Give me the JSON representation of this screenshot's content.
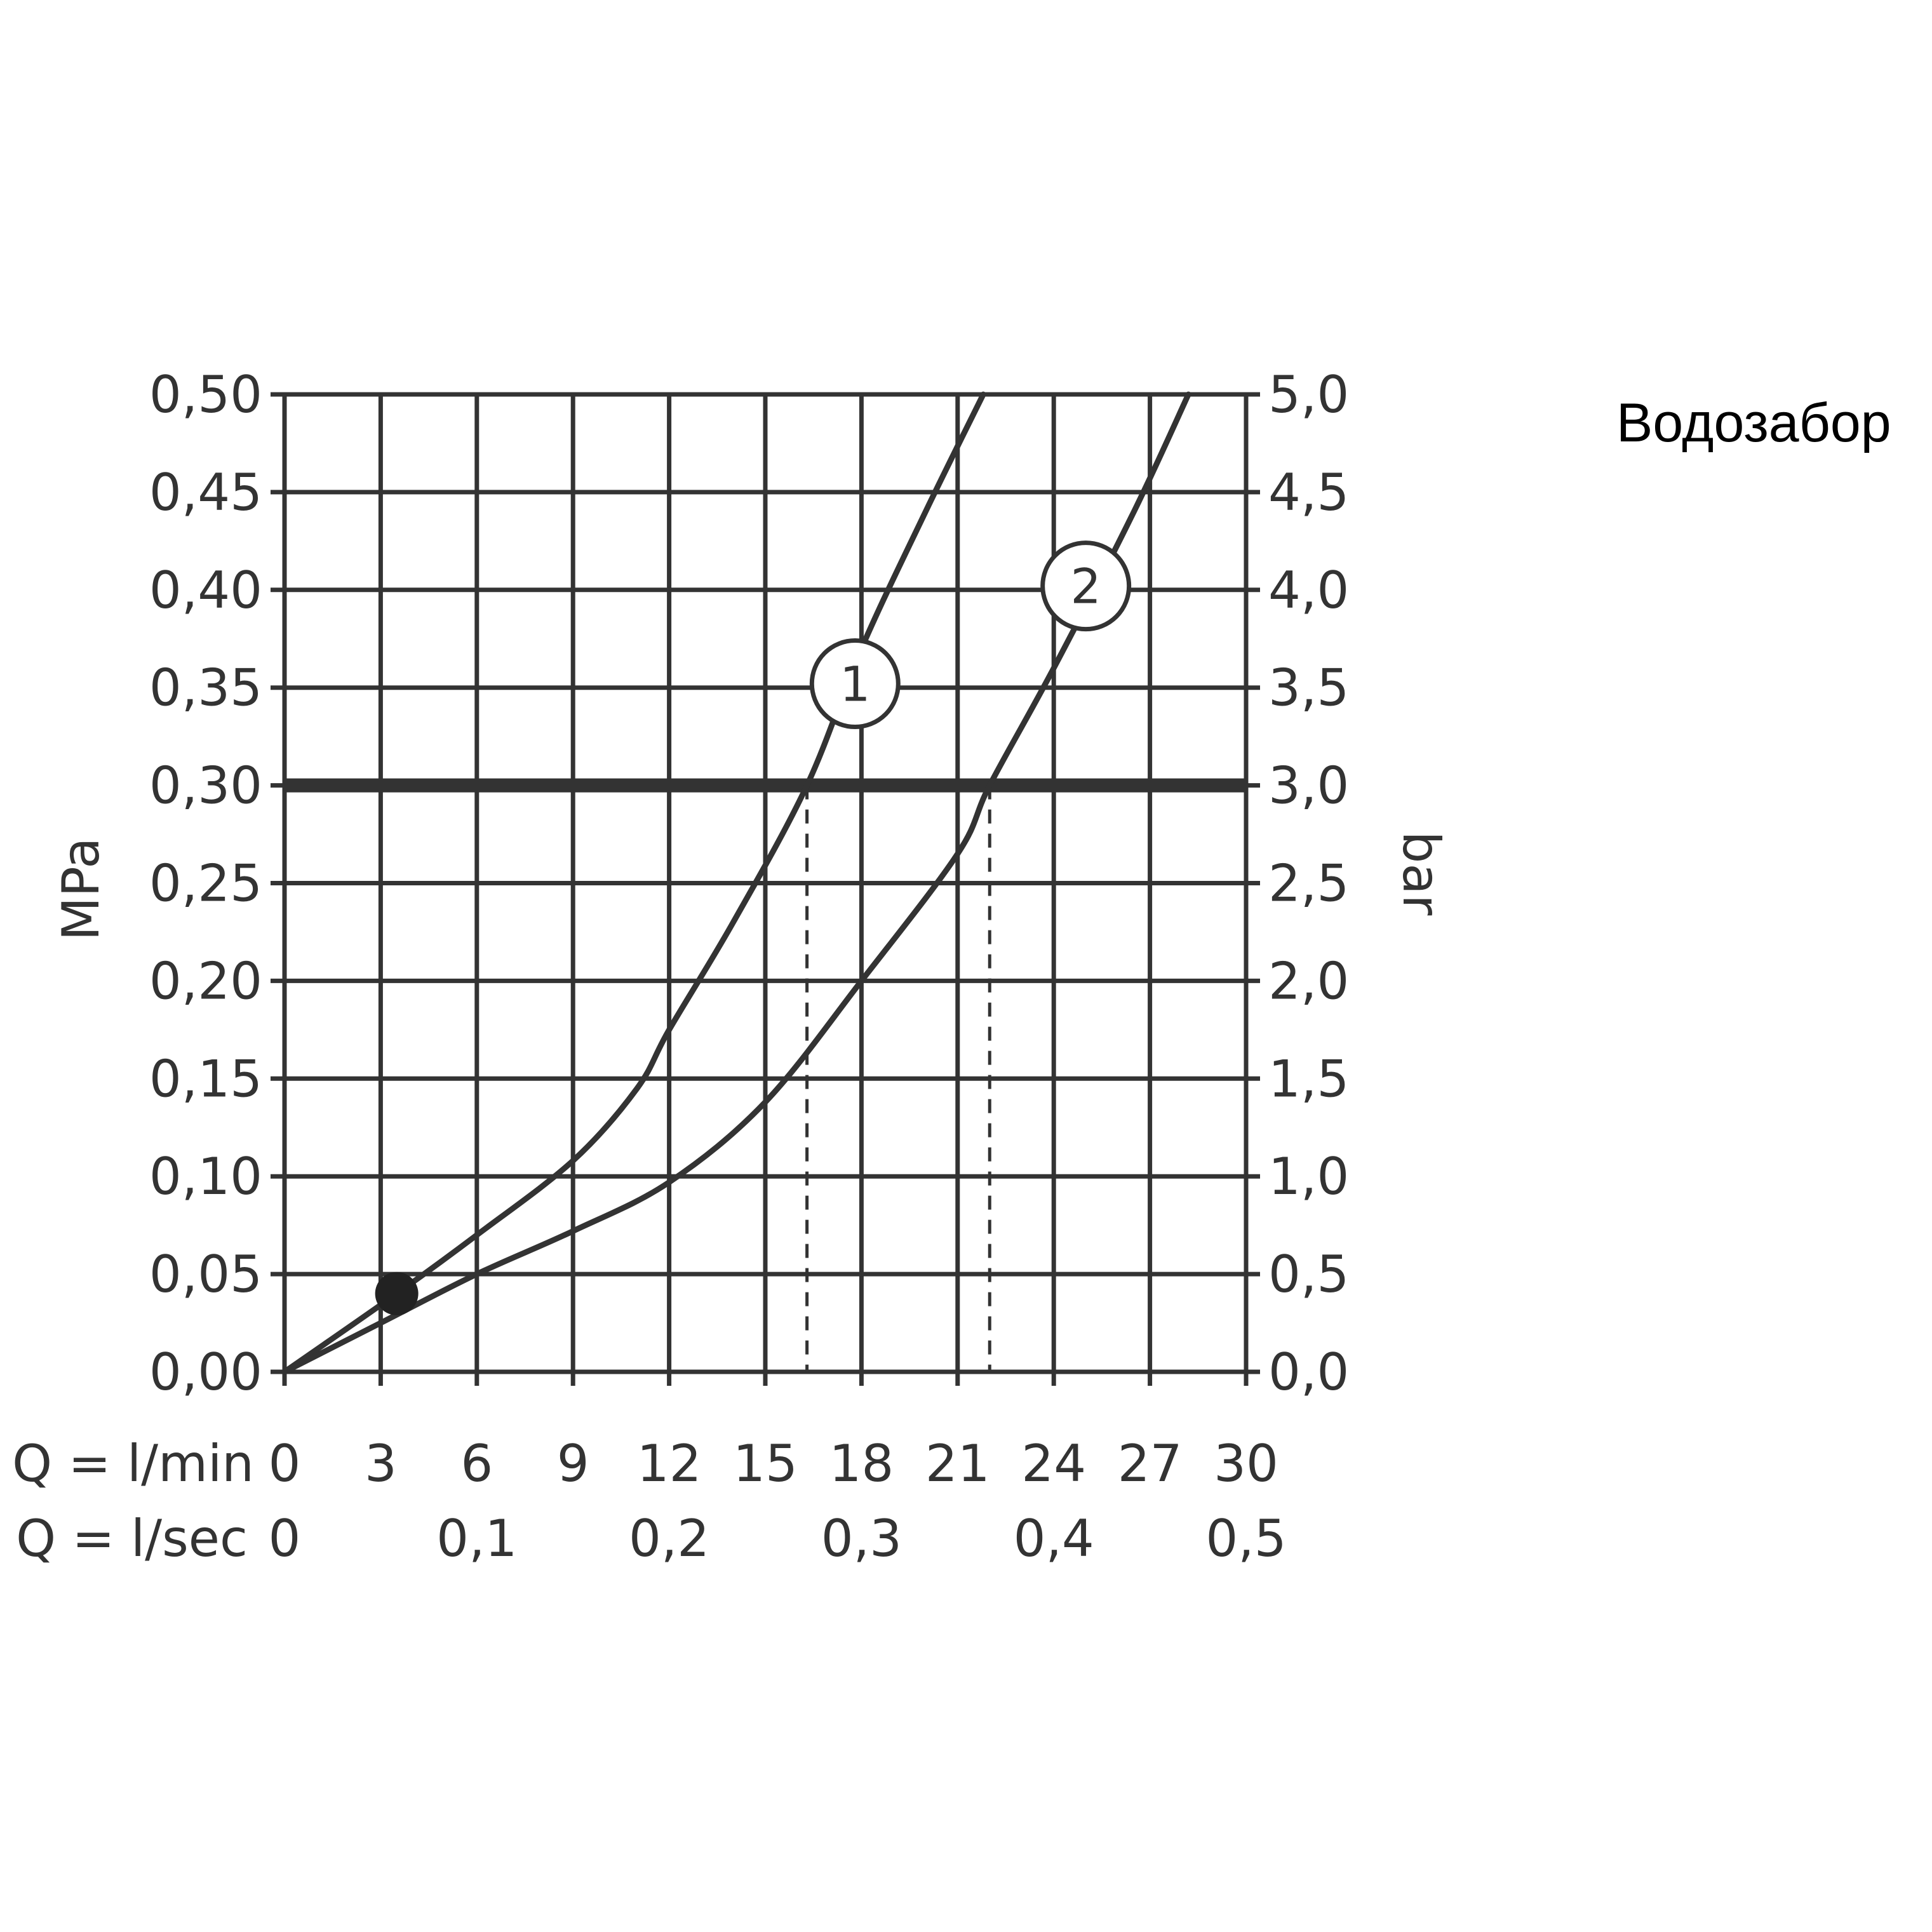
{
  "side_title": "Водозабор",
  "chart_data": {
    "type": "line",
    "y_left": {
      "label": "MPa",
      "ticks": [
        "0,00",
        "0,05",
        "0,10",
        "0,15",
        "0,20",
        "0,25",
        "0,30",
        "0,35",
        "0,40",
        "0,45",
        "0,50"
      ],
      "range": [
        0,
        0.5
      ]
    },
    "y_right": {
      "label": "bar",
      "ticks": [
        "0,0",
        "0,5",
        "1,0",
        "1,5",
        "2,0",
        "2,5",
        "3,0",
        "3,5",
        "4,0",
        "4,5",
        "5,0"
      ],
      "range": [
        0,
        5
      ]
    },
    "x_primary": {
      "label": "Q = l/min",
      "ticks": [
        "0",
        "3",
        "6",
        "9",
        "12",
        "15",
        "18",
        "21",
        "24",
        "27",
        "30"
      ],
      "range": [
        0,
        30
      ]
    },
    "x_secondary": {
      "label": "Q = l/sec",
      "ticks": [
        "0",
        "0,1",
        "0,2",
        "0,3",
        "0,4",
        "0,5"
      ],
      "range": [
        0,
        0.5
      ]
    },
    "grid": true,
    "reference_line": {
      "y": 0.3
    },
    "series": [
      {
        "marker_label": "1",
        "marker_at": {
          "x": 17.8,
          "y": 0.352
        },
        "points": [
          [
            0,
            0
          ],
          [
            3.5,
            0.04
          ],
          [
            6,
            0.07
          ],
          [
            9,
            0.108
          ],
          [
            11,
            0.145
          ],
          [
            12,
            0.175
          ],
          [
            14,
            0.23
          ],
          [
            16.3,
            0.3
          ],
          [
            18,
            0.37
          ],
          [
            20,
            0.44
          ],
          [
            21.8,
            0.5
          ]
        ]
      },
      {
        "marker_label": "2",
        "marker_at": {
          "x": 25,
          "y": 0.402
        },
        "points": [
          [
            0,
            0
          ],
          [
            3,
            0.025
          ],
          [
            6,
            0.05
          ],
          [
            9,
            0.072
          ],
          [
            12,
            0.097
          ],
          [
            15,
            0.138
          ],
          [
            18,
            0.2
          ],
          [
            21,
            0.265
          ],
          [
            22,
            0.3
          ],
          [
            24,
            0.36
          ],
          [
            26.5,
            0.44
          ],
          [
            28.2,
            0.5
          ]
        ]
      }
    ],
    "drop_lines_x": [
      16.3,
      22.0
    ],
    "point_marker": {
      "x": 3.5,
      "y": 0.04
    }
  }
}
